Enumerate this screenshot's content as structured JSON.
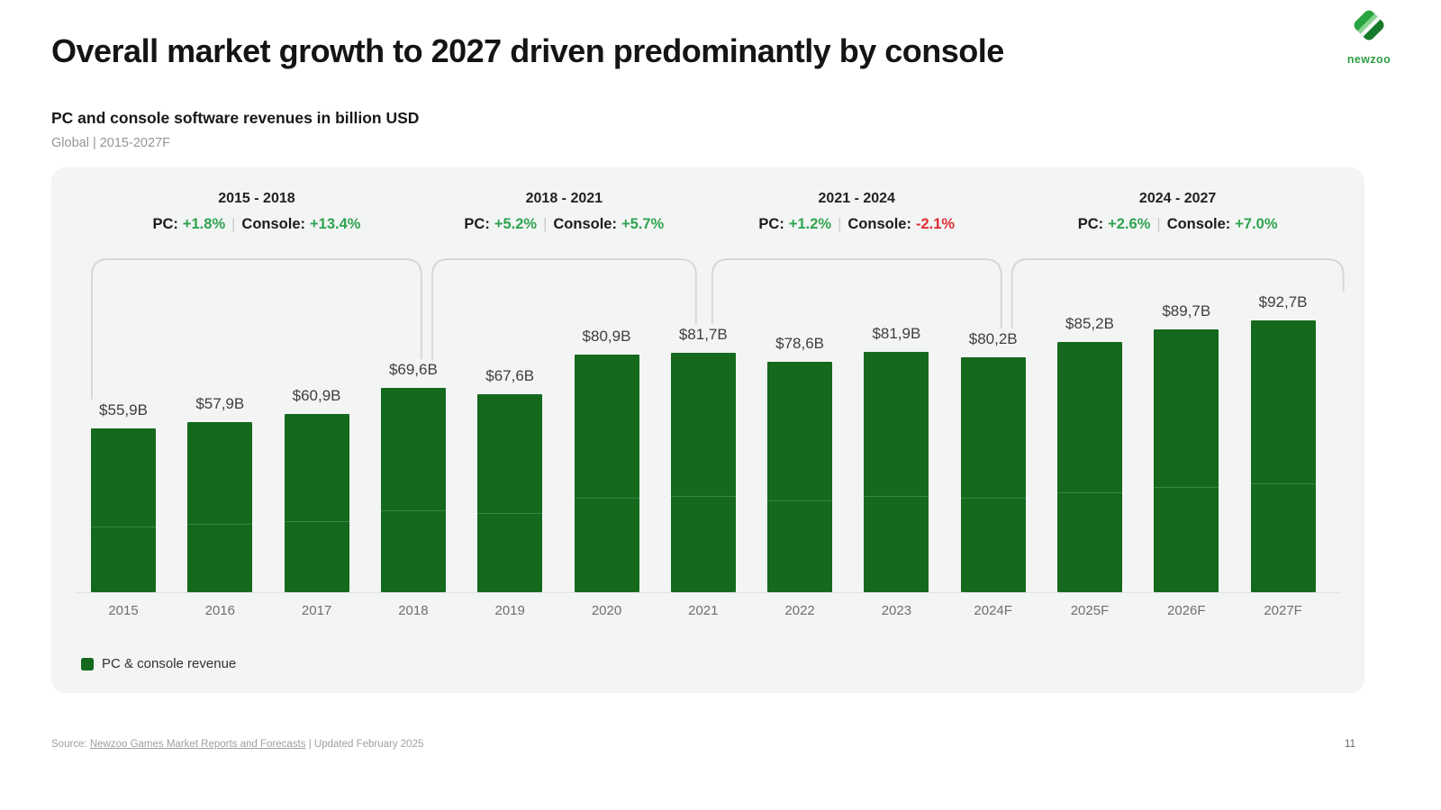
{
  "header": {
    "title": "Overall market growth to 2027 driven predominantly by console",
    "subtitle": "PC and console software revenues in billion USD",
    "scope": "Global | 2015-2027F"
  },
  "logo": {
    "wordmark": "newzoo"
  },
  "labels": {
    "pc": "PC:",
    "console": "Console:",
    "separator": "|"
  },
  "chart_data": {
    "type": "bar",
    "title": "PC and console software revenues in billion USD",
    "subtitle": "Global | 2015-2027F",
    "categories": [
      "2015",
      "2016",
      "2017",
      "2018",
      "2019",
      "2020",
      "2021",
      "2022",
      "2023",
      "2024F",
      "2025F",
      "2026F",
      "2027F"
    ],
    "values": [
      55.9,
      57.9,
      60.9,
      69.6,
      67.6,
      80.9,
      81.7,
      78.6,
      81.9,
      80.2,
      85.2,
      89.7,
      92.7
    ],
    "value_labels": [
      "$55,9B",
      "$57,9B",
      "$60,9B",
      "$69,6B",
      "$67,6B",
      "$80,9B",
      "$81,7B",
      "$78,6B",
      "$81,9B",
      "$80,2B",
      "$85,2B",
      "$89,7B",
      "$92,7B"
    ],
    "unit": "billion USD",
    "ylim": [
      0,
      100
    ],
    "grid": false,
    "legend_position": "bottom-left",
    "legend": {
      "label": "PC & console revenue"
    },
    "growth_periods": [
      {
        "range": "2015 - 2018",
        "pc": "+1.8%",
        "console": "+13.4%",
        "console_negative": false
      },
      {
        "range": "2018 - 2021",
        "pc": "+5.2%",
        "console": "+5.7%",
        "console_negative": false
      },
      {
        "range": "2021 - 2024",
        "pc": "+1.2%",
        "console": "-2.1%",
        "console_negative": true
      },
      {
        "range": "2024 - 2027",
        "pc": "+2.6%",
        "console": "+7.0%",
        "console_negative": false
      }
    ]
  },
  "footer": {
    "source_prefix": "Source: ",
    "source_link": "Newzoo Games Market Reports and Forecasts",
    "source_suffix": " | Updated February 2025",
    "page_number": "11"
  },
  "colors": {
    "bar": "#14691d",
    "positive": "#2ea44f",
    "negative": "#dd2e33",
    "bracket": "#d7d7d8",
    "logo_green": "#2f9e44"
  }
}
